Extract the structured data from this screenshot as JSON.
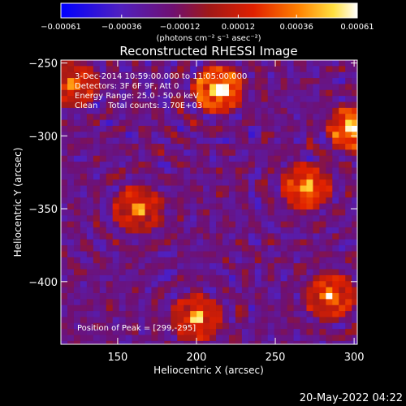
{
  "chart_data": {
    "type": "heatmap",
    "title": "Reconstructed RHESSI Image",
    "xlabel": "Heliocentric X (arcsec)",
    "ylabel": "Heliocentric Y (arcsec)",
    "xlim": [
      114,
      302
    ],
    "ylim": [
      -443,
      -248
    ],
    "x_ticks": [
      150,
      200,
      250,
      300
    ],
    "y_ticks": [
      -250,
      -300,
      -350,
      -400
    ],
    "x_tick_labels": [
      "150",
      "200",
      "250",
      "300"
    ],
    "y_tick_labels": [
      "−250",
      "−300",
      "−350",
      "−400"
    ],
    "colorbar": {
      "min": -0.00061,
      "max": 0.00061,
      "ticks": [
        -0.00061,
        -0.00036,
        -0.00012,
        0.00012,
        0.00036,
        0.00061
      ],
      "tick_labels": [
        "−0.00061",
        "−0.00036",
        "−0.00012",
        "0.00012",
        "0.00036",
        "0.00061"
      ],
      "unit": "(photons cm⁻² s⁻¹ asec⁻²)"
    },
    "annotations": [
      "3-Dec-2014 10:59:00.000 to 11:05:00.000",
      "Detectors: 3F 6F 9F, Att 0",
      "Energy Range: 25.0 - 50.0 keV",
      "Clean    Total counts: 3.70E+03"
    ],
    "peak_label": "Position of Peak = [299,-295]",
    "sources": [
      {
        "x": 214,
        "y": -268,
        "amplitude": 1.0
      },
      {
        "x": 299,
        "y": -295,
        "amplitude": 0.9
      },
      {
        "x": 163,
        "y": -350,
        "amplitude": 0.65
      },
      {
        "x": 270,
        "y": -335,
        "amplitude": 0.75
      },
      {
        "x": 200,
        "y": -425,
        "amplitude": 0.7
      },
      {
        "x": 285,
        "y": -410,
        "amplitude": 0.7
      },
      {
        "x": 122,
        "y": -265,
        "amplitude": 0.6
      }
    ]
  },
  "timestamp": "20-May-2022 04:22"
}
